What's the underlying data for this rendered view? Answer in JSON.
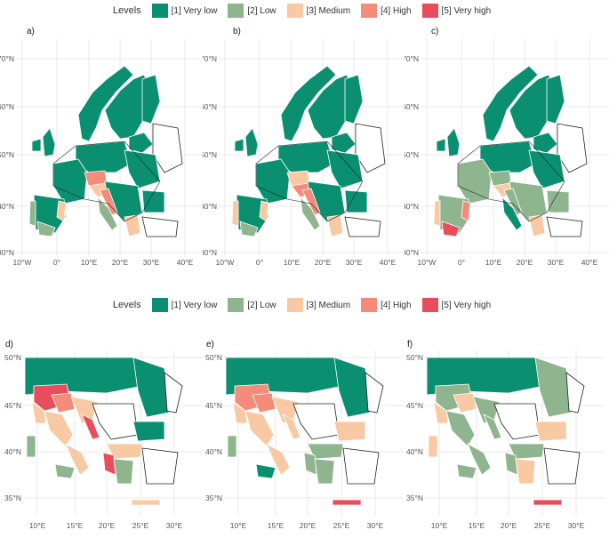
{
  "legend": {
    "title": "Levels",
    "items": [
      {
        "label": "[1] Very low",
        "color": "#0a9070"
      },
      {
        "label": "[2] Low",
        "color": "#8fb58f"
      },
      {
        "label": "[3] Medium",
        "color": "#f8c9a2"
      },
      {
        "label": "[4] High",
        "color": "#f58b7a"
      },
      {
        "label": "[5] Very high",
        "color": "#e84d5b"
      }
    ]
  },
  "top_row": {
    "x_ticks": [
      "10°W",
      "0°",
      "10°E",
      "20°E",
      "30°E",
      "40°E"
    ],
    "y_ticks": [
      "70°N",
      "60°N",
      "50°N",
      "40°N",
      "30°N"
    ],
    "panels": [
      {
        "label": "a)"
      },
      {
        "label": "b)"
      },
      {
        "label": "c)"
      }
    ]
  },
  "bottom_row": {
    "x_ticks": [
      "10°E",
      "15°E",
      "20°E",
      "25°E",
      "30°E"
    ],
    "y_ticks": [
      "50°N",
      "45°N",
      "40°N",
      "35°N"
    ],
    "panels": [
      {
        "label": "d)"
      },
      {
        "label": "e)"
      },
      {
        "label": "f)"
      }
    ]
  }
}
